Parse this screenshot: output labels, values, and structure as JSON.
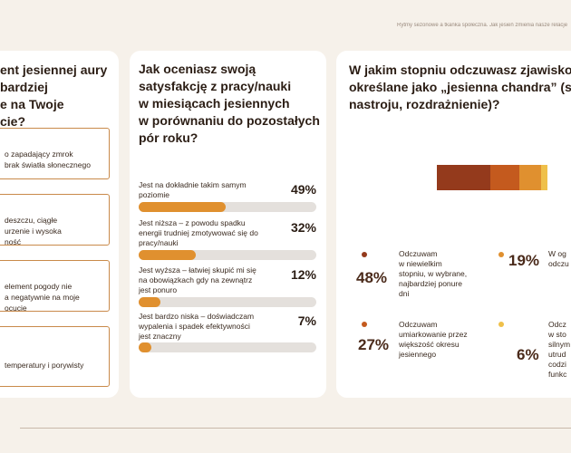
{
  "header": {
    "caption": "Rytmy sezonowe a tkanka społeczna. Jak jesień zmienia nasze relacje"
  },
  "left_card": {
    "title": "ent jesiennej aury\nbardziej\ne na Twoje\ncie?",
    "options": [
      {
        "text": "o zapadający zmrok\nbrak światła słonecznego"
      },
      {
        "text": "deszczu, ciągłe\nurzenie i wysoka\nność"
      },
      {
        "text": "element pogody nie\na negatywnie na moje\nocucie"
      },
      {
        "text": "temperatury i porywisty"
      }
    ]
  },
  "mid_card": {
    "title": "Jak oceniasz swoją\nsatysfakcję z pracy/nauki\nw miesiącach jesiennych\nw porównaniu do pozostałych\npór roku?",
    "rows": [
      {
        "label": "Jest na dokładnie takim samym\npoziomie",
        "pct_label": "49%",
        "value": 49
      },
      {
        "label": "Jest niższa – z powodu spadku\nenergii trudniej zmotywować się do\npracy/nauki",
        "pct_label": "32%",
        "value": 32
      },
      {
        "label": "Jest wyższa – łatwiej skupić mi się\nna obowiązkach gdy na zewnątrz\njest ponuro",
        "pct_label": "12%",
        "value": 12
      },
      {
        "label": "Jest bardzo niska – doświadczam\nwypalenia i spadek efektywności\njest znaczny",
        "pct_label": "7%",
        "value": 7
      }
    ],
    "colors": {
      "fill": "#e0902f",
      "track": "#e4e0dc"
    }
  },
  "right_card": {
    "title": "W jakim stopniu odczuwasz zjawisko\nokreślane jako „jesienna chandra” (s\nnastroju, rozdrażnienie)?",
    "segments": [
      {
        "value": 48,
        "color": "#943a1c"
      },
      {
        "value": 27,
        "color": "#c45a1e"
      },
      {
        "value": 19,
        "color": "#e0902f"
      },
      {
        "value": 6,
        "color": "#efc04a"
      }
    ],
    "legend": [
      {
        "pct": "48%",
        "text": "Odczuwam\nw niewielkim\nstopniu, w wybrane,\nnajbardziej ponure\ndni",
        "color": "#943a1c"
      },
      {
        "pct": "19%",
        "text": "W og\nodczu",
        "color": "#e0902f"
      },
      {
        "pct": "27%",
        "text": "Odczuwam\numiarkowanie przez\nwiększość okresu\njesiennego",
        "color": "#c45a1e"
      },
      {
        "pct": "6%",
        "text": "Odcz\nw sto\nsilnym\nutrud\ncodzi\nfunkc",
        "color": "#efc04a"
      }
    ]
  }
}
